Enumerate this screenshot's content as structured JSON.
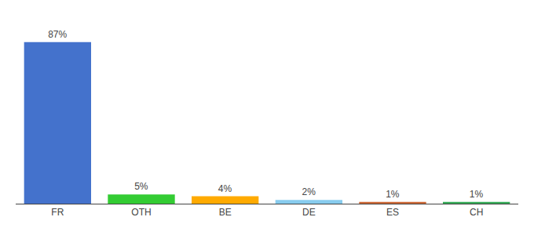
{
  "chart_data": {
    "type": "bar",
    "categories": [
      "FR",
      "OTH",
      "BE",
      "DE",
      "ES",
      "CH"
    ],
    "values": [
      87,
      5,
      4,
      2,
      1,
      1
    ],
    "value_labels": [
      "87%",
      "5%",
      "4%",
      "2%",
      "1%",
      "1%"
    ],
    "colors": [
      "#4472cc",
      "#33cc33",
      "#ffaa00",
      "#88ccee",
      "#cc6633",
      "#33aa55"
    ],
    "ylim": [
      0,
      97
    ],
    "grid": false,
    "data_labels": true,
    "tick_labels": "x"
  }
}
